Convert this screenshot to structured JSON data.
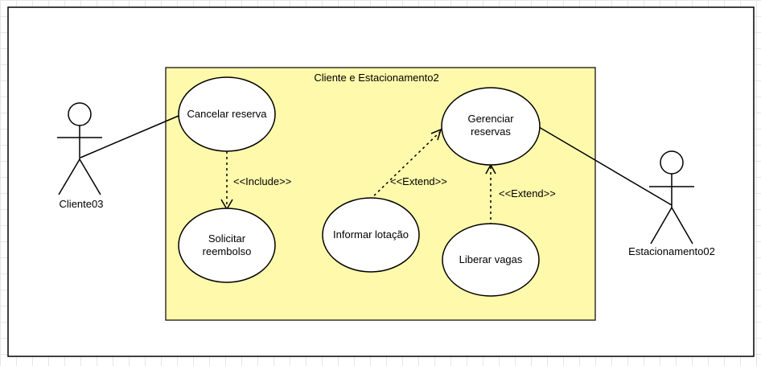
{
  "system": {
    "name": "Cliente e Estacionamento2"
  },
  "actors": {
    "cliente": {
      "name": "Cliente03"
    },
    "estacionamento": {
      "name": "Estacionamento02"
    }
  },
  "use_cases": {
    "cancelar": {
      "label": "Cancelar reserva"
    },
    "solicitar": {
      "line1": "Solicitar",
      "line2": "reembolso"
    },
    "gerenciar": {
      "line1": "Gerenciar",
      "line2": "reservas"
    },
    "informar": {
      "label": "Informar lotação"
    },
    "liberar": {
      "label": "Liberar vagas"
    }
  },
  "relationships": {
    "include": "<<Include>>",
    "extend_informar": "<<Extend>>",
    "extend_liberar": "<<Extend>>"
  },
  "colors": {
    "system_fill": "#fff9ab",
    "use_case_fill": "#ffffff",
    "stroke": "#000000"
  }
}
